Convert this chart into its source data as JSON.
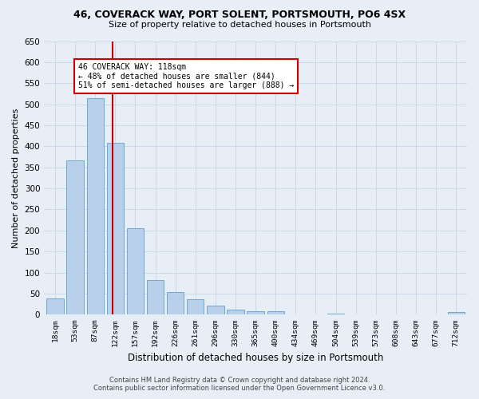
{
  "title1": "46, COVERACK WAY, PORT SOLENT, PORTSMOUTH, PO6 4SX",
  "title2": "Size of property relative to detached houses in Portsmouth",
  "xlabel": "Distribution of detached houses by size in Portsmouth",
  "ylabel": "Number of detached properties",
  "bar_labels": [
    "18sqm",
    "53sqm",
    "87sqm",
    "122sqm",
    "157sqm",
    "192sqm",
    "226sqm",
    "261sqm",
    "296sqm",
    "330sqm",
    "365sqm",
    "400sqm",
    "434sqm",
    "469sqm",
    "504sqm",
    "539sqm",
    "573sqm",
    "608sqm",
    "643sqm",
    "677sqm",
    "712sqm"
  ],
  "bar_values": [
    38,
    367,
    515,
    408,
    205,
    82,
    54,
    37,
    22,
    12,
    8,
    8,
    0,
    0,
    3,
    0,
    0,
    0,
    0,
    0,
    6
  ],
  "bar_color": "#b8d0ea",
  "bar_edge_color": "#6aaad4",
  "grid_color": "#c8d4e8",
  "bg_color": "#e8eef6",
  "vline_color": "#cc0000",
  "vline_xindex": 2.88,
  "annotation_title": "46 COVERACK WAY: 118sqm",
  "annotation_line1": "← 48% of detached houses are smaller (844)",
  "annotation_line2": "51% of semi-detached houses are larger (888) →",
  "annotation_box_color": "#ffffff",
  "annotation_border_color": "#cc0000",
  "footer1": "Contains HM Land Registry data © Crown copyright and database right 2024.",
  "footer2": "Contains public sector information licensed under the Open Government Licence v3.0.",
  "ylim": [
    0,
    650
  ],
  "yticks": [
    0,
    50,
    100,
    150,
    200,
    250,
    300,
    350,
    400,
    450,
    500,
    550,
    600,
    650
  ]
}
